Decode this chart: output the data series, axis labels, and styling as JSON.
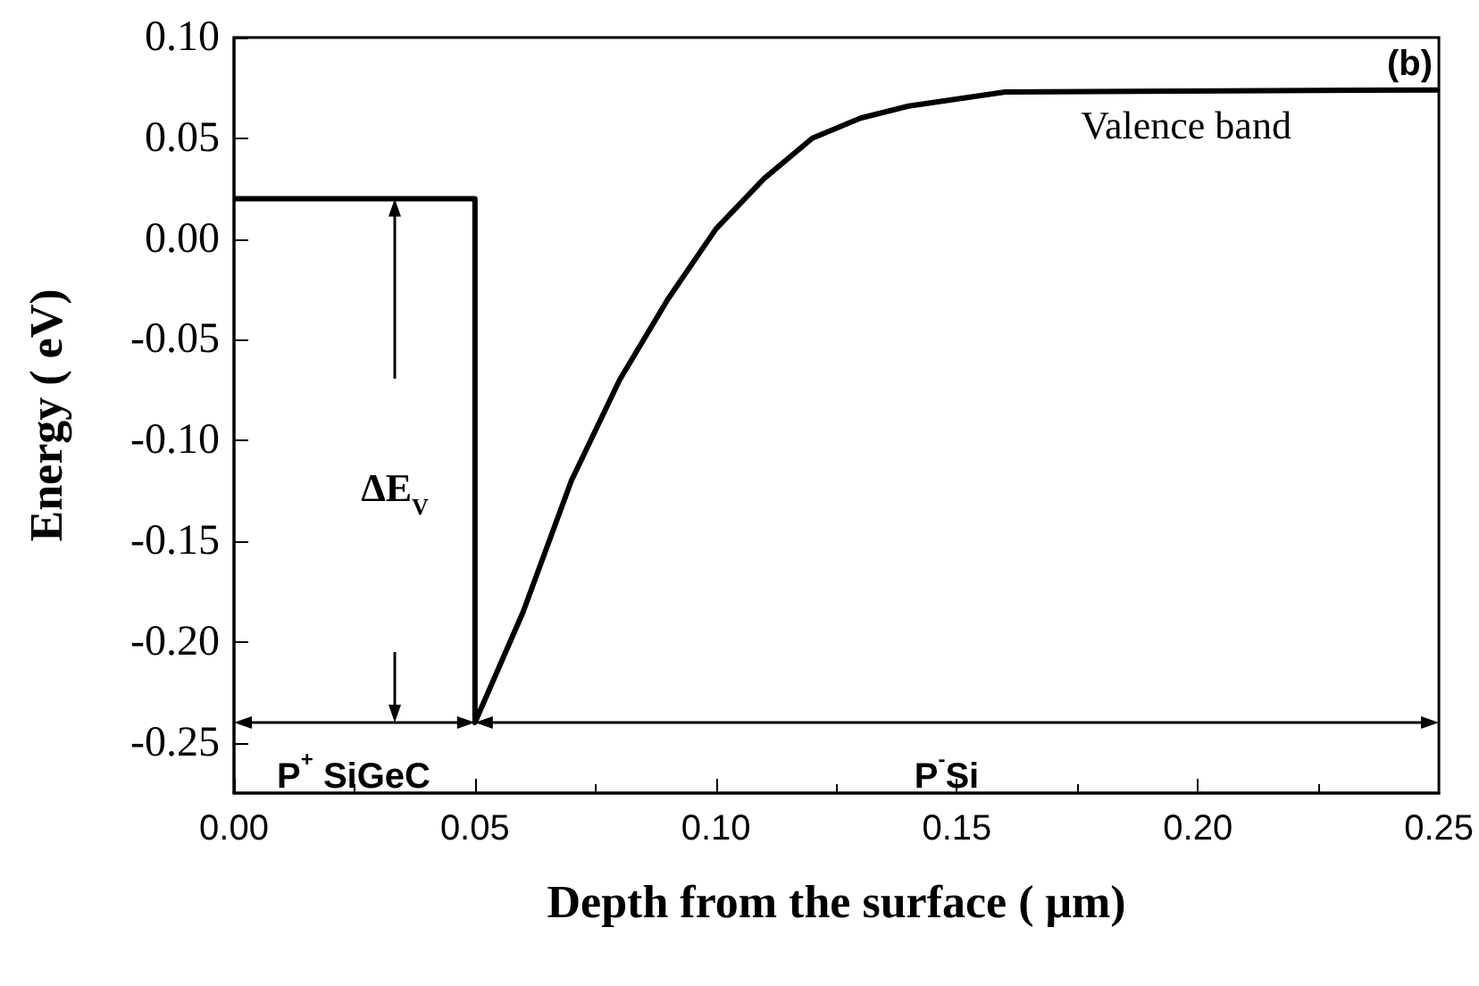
{
  "chart_data": {
    "type": "line",
    "xlabel": "Depth from the surface ( μm)",
    "ylabel": "Energy ( eV)",
    "x": [
      0,
      0.05,
      0.05,
      0.06,
      0.07,
      0.08,
      0.09,
      0.1,
      0.11,
      0.12,
      0.13,
      0.14,
      0.16,
      0.25
    ],
    "series": [
      {
        "color": "#000000",
        "values": [
          0.02,
          0.02,
          -0.24,
          -0.185,
          -0.12,
          -0.07,
          -0.03,
          0.005,
          0.03,
          0.05,
          0.06,
          0.066,
          0.073,
          0.074
        ]
      }
    ],
    "xlim": [
      0,
      0.25
    ],
    "xticks": [
      {
        "value": 0,
        "label": "0.00"
      },
      0.05,
      {
        "value": 0.1,
        "label": "0.10"
      },
      0.15,
      {
        "value": 0.2,
        "label": "0.20"
      },
      0.25
    ],
    "ylim": [
      -0.275,
      0.1
    ],
    "yticks": [
      -0.25,
      {
        "value": -0.2,
        "label": "-0.20"
      },
      -0.15,
      {
        "value": -0.1,
        "label": "-0.10"
      },
      -0.05,
      {
        "value": 0,
        "label": "0.00"
      },
      0.05,
      {
        "value": 0.1,
        "label": "0.10"
      }
    ],
    "grid": false,
    "marker": "none",
    "line_style": "solid",
    "annotations": [
      "ΔE$_{V}$",
      "Valence band",
      "(b)",
      "P$^{+}$ SiGeC",
      "P$^{-}$Si"
    ]
  }
}
